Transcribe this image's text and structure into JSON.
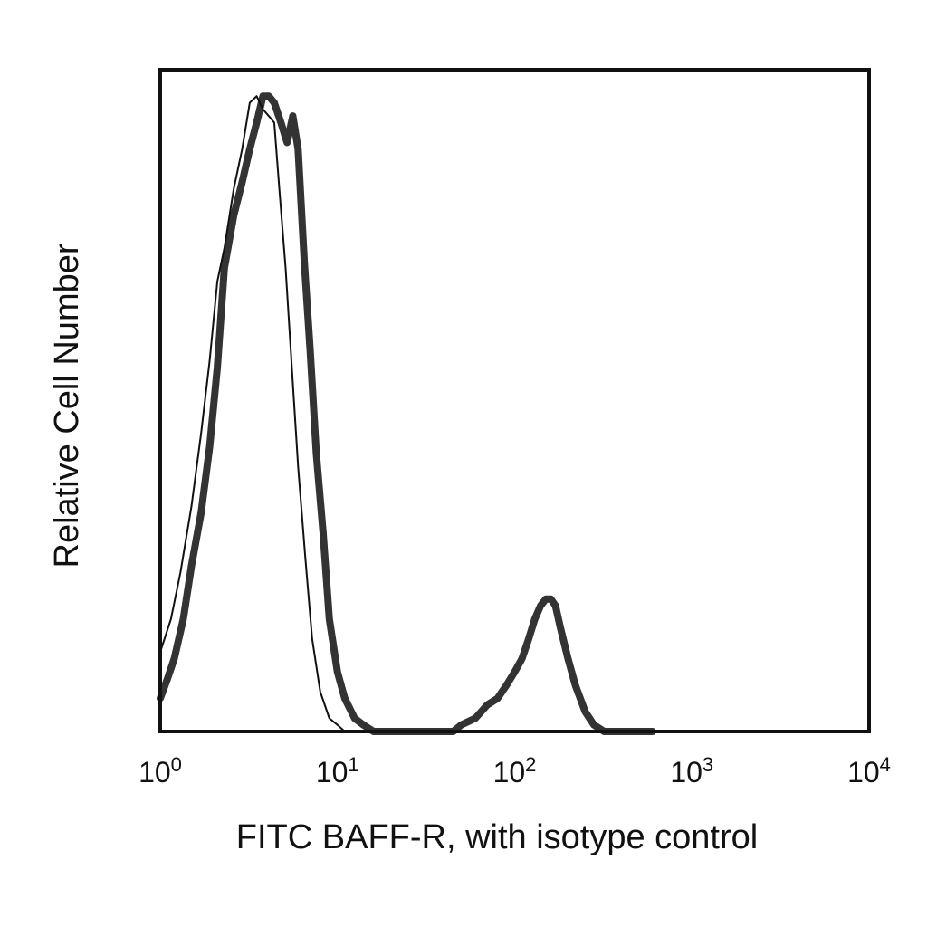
{
  "chart_data": {
    "type": "line",
    "title": "",
    "xlabel": "FITC BAFF-R, with isotype control",
    "ylabel": "Relative Cell Number",
    "x_scale": "log",
    "xlim": [
      1,
      10000
    ],
    "ylim": [
      0,
      1
    ],
    "grid": false,
    "legend": "none",
    "x_ticks": [
      {
        "base": "10",
        "exp": "0",
        "value": 1
      },
      {
        "base": "10",
        "exp": "1",
        "value": 10
      },
      {
        "base": "10",
        "exp": "2",
        "value": 100
      },
      {
        "base": "10",
        "exp": "3",
        "value": 1000
      },
      {
        "base": "10",
        "exp": "4",
        "value": 10000
      }
    ],
    "series": [
      {
        "color": "#333333",
        "style": "thick",
        "x": [
          1.0,
          1.1,
          1.2,
          1.35,
          1.5,
          1.7,
          1.9,
          2.1,
          2.3,
          2.6,
          2.9,
          3.2,
          3.5,
          3.8,
          4.1,
          4.4,
          4.8,
          5.2,
          5.6,
          6.0,
          6.5,
          7.0,
          7.6,
          8.3,
          9.0,
          10.0,
          11.0,
          12.5,
          14.0,
          16.0,
          18.0,
          20.0,
          25.0,
          30.0,
          35.0,
          40.0,
          45.0,
          50.0,
          60.0,
          70.0,
          80.0,
          90.0,
          100.0,
          110.0,
          120.0,
          130.0,
          140.0,
          150.0,
          160.0,
          170.0,
          180.0,
          200.0,
          220.0,
          250.0,
          280.0,
          320.0,
          400.0,
          500.0,
          600.0
        ],
        "y": [
          0.05,
          0.08,
          0.11,
          0.17,
          0.25,
          0.33,
          0.43,
          0.55,
          0.7,
          0.78,
          0.83,
          0.88,
          0.92,
          0.96,
          0.96,
          0.95,
          0.92,
          0.89,
          0.93,
          0.88,
          0.71,
          0.58,
          0.42,
          0.3,
          0.17,
          0.09,
          0.05,
          0.02,
          0.01,
          0.0,
          0.0,
          0.0,
          0.0,
          0.0,
          0.0,
          0.0,
          0.0,
          0.01,
          0.02,
          0.04,
          0.05,
          0.07,
          0.09,
          0.11,
          0.14,
          0.17,
          0.19,
          0.2,
          0.2,
          0.19,
          0.16,
          0.11,
          0.07,
          0.03,
          0.01,
          0.0,
          0.0,
          0.0,
          0.0
        ]
      },
      {
        "color": "#111111",
        "style": "thin",
        "x": [
          1.0,
          1.15,
          1.3,
          1.5,
          1.7,
          1.9,
          2.1,
          2.3,
          2.6,
          2.9,
          3.2,
          3.5,
          3.8,
          4.1,
          4.4,
          4.7,
          5.1,
          5.5,
          6.0,
          6.6,
          7.2,
          8.0,
          9.0,
          10.0,
          11.0,
          12.0,
          13.5,
          15.0,
          18.0
        ],
        "y": [
          0.12,
          0.17,
          0.24,
          0.34,
          0.45,
          0.56,
          0.68,
          0.73,
          0.82,
          0.88,
          0.95,
          0.96,
          0.94,
          0.93,
          0.92,
          0.82,
          0.7,
          0.56,
          0.4,
          0.26,
          0.14,
          0.06,
          0.02,
          0.01,
          0.0,
          0.0,
          0.0,
          0.0,
          0.0
        ]
      }
    ]
  }
}
